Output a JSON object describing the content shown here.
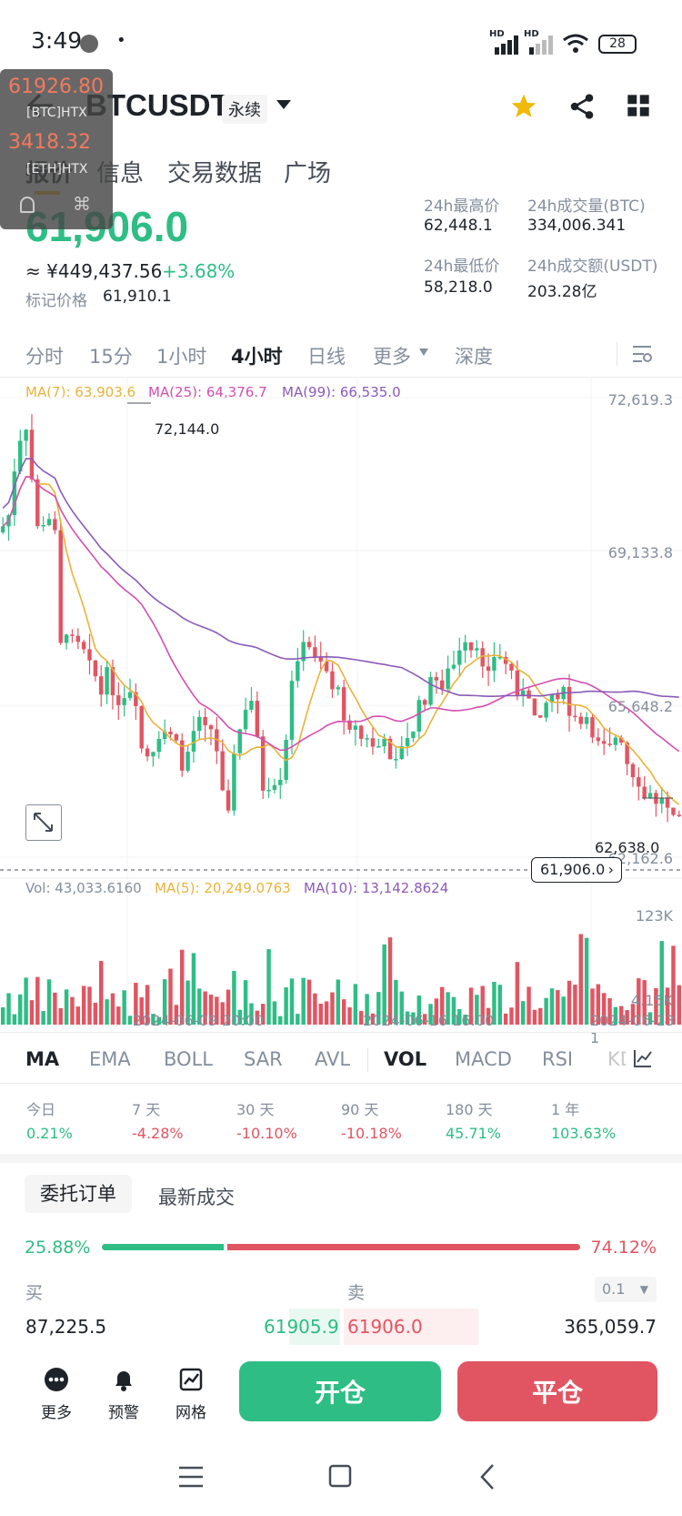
{
  "status_bar": {
    "time": "3:49",
    "battery": "28",
    "net1": "HD",
    "net2": "HD"
  },
  "overlay": {
    "price1": "61926.80",
    "label1": "[BTC]HTX",
    "price2": "3418.32",
    "label2": "[ETH]HTX"
  },
  "header": {
    "symbol": "BTCUSDT",
    "badge": "永续"
  },
  "tabs": [
    "报价",
    "信息",
    "交易数据",
    "广场"
  ],
  "price": {
    "last": "61,906.0",
    "cny": "≈ ¥449,437.56",
    "change": "+3.68%",
    "mark_label": "标记价格",
    "mark_value": "61,910.1"
  },
  "stats": {
    "high_label": "24h最高价",
    "high": "62,448.1",
    "vol_btc_label": "24h成交量(BTC)",
    "vol_btc": "334,006.341",
    "low_label": "24h最低价",
    "low": "58,218.0",
    "vol_usdt_label": "24h成交额(USDT)",
    "vol_usdt": "203.28亿"
  },
  "chart_tabs": [
    "分时",
    "15分",
    "1小时",
    "4小时",
    "日线",
    "更多",
    "深度"
  ],
  "ma_legend": {
    "ma7": "MA(7): 63,903.6",
    "ma25": "MA(25): 64,376.7",
    "ma99": "MA(99): 66,535.0"
  },
  "axis": {
    "y1": "72,619.3",
    "y2": "69,133.8",
    "y3": "65,648.2",
    "y4": "62,162.6",
    "high_mark": "72,144.0",
    "low_mark": "62,638.0",
    "current": "61,906.0"
  },
  "vol_legend": {
    "vol": "Vol: 43,033.6160",
    "ma5": "MA(5): 20,249.0763",
    "ma10": "MA(10): 13,142.8624"
  },
  "vol_axis": {
    "top": "123K",
    "bottom": "4.15K"
  },
  "x_labels": [
    "2024-06-09 20:00",
    "2024-06-16 16:00",
    "2024-06-23 1"
  ],
  "indicators": [
    "MA",
    "EMA",
    "BOLL",
    "SAR",
    "AVL",
    "VOL",
    "MACD",
    "RSI",
    "KD"
  ],
  "performance": [
    {
      "label": "今日",
      "value": "0.21%",
      "color": "#2ebd85"
    },
    {
      "label": "7 天",
      "value": "-4.28%",
      "color": "#e15562"
    },
    {
      "label": "30 天",
      "value": "-10.10%",
      "color": "#e15562"
    },
    {
      "label": "90 天",
      "value": "-10.18%",
      "color": "#e15562"
    },
    {
      "label": "180 天",
      "value": "45.71%",
      "color": "#2ebd85"
    },
    {
      "label": "1 年",
      "value": "103.63%",
      "color": "#2ebd85"
    }
  ],
  "orders": {
    "tab1": "委托订单",
    "tab2": "最新成交",
    "buy_pct": "25.88%",
    "sell_pct": "74.12%",
    "buy_ratio": 0.2588,
    "buy_label": "买",
    "sell_label": "卖",
    "step": "0.1",
    "buy_qty": "87,225.5",
    "buy_price": "61905.9",
    "sell_price": "61906.0",
    "sell_qty": "365,059.7"
  },
  "bottom": {
    "more": "更多",
    "alert": "预警",
    "grid": "网格",
    "open": "开仓",
    "close": "平仓"
  },
  "colors": {
    "green": "#2ebd85",
    "red": "#e15562",
    "gold": "#f0b90b",
    "ma7": "#e8b33a",
    "ma25": "#d34fb1",
    "ma99": "#8a5bb8"
  }
}
